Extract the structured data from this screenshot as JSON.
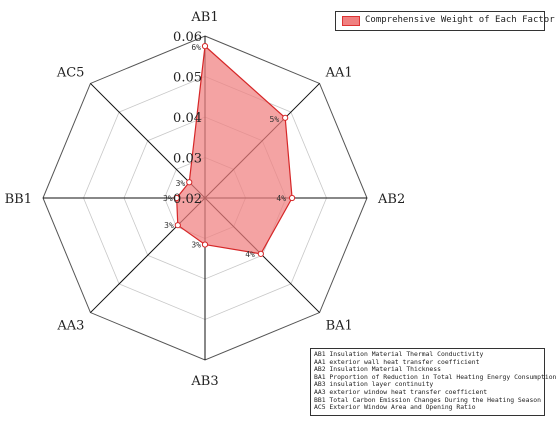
{
  "chart_data": {
    "type": "radar",
    "axes": [
      "AB1",
      "AA1",
      "AB2",
      "BA1",
      "AB3",
      "AA3",
      "BB1",
      "AC5"
    ],
    "radial_ticks": [
      "0.02",
      "0.03",
      "0.04",
      "0.05",
      "0.06"
    ],
    "rlim": [
      0.02,
      0.06
    ],
    "series": [
      {
        "name": "Comprehensive Weight of Each Factor",
        "values": [
          0.0575,
          0.048,
          0.0415,
          0.0395,
          0.0315,
          0.0295,
          0.027,
          0.0255
        ],
        "labels": [
          "6%",
          "5%",
          "4%",
          "4%",
          "3%",
          "3%",
          "3%",
          "3%"
        ],
        "color": "#f08080",
        "edge_color": "#d62728"
      }
    ],
    "grid": true,
    "legend_position": "top-right"
  },
  "legend": {
    "label": "Comprehensive Weight of Each Factor"
  },
  "notes": [
    "AB1 Insulation Material Thermal Conductivity",
    "AA1 exterior wall heat transfer coefficient",
    "AB2 Insulation Material Thickness",
    "BA1 Proportion of Reduction in Total Heating Energy Consumption",
    "AB3 insulation layer continuity",
    "AA3 exterior window heat transfer coefficient",
    "BB1 Total Carbon Emission Changes During the Heating Season",
    "AC5 Exterior Window Area and Opening Ratio"
  ]
}
